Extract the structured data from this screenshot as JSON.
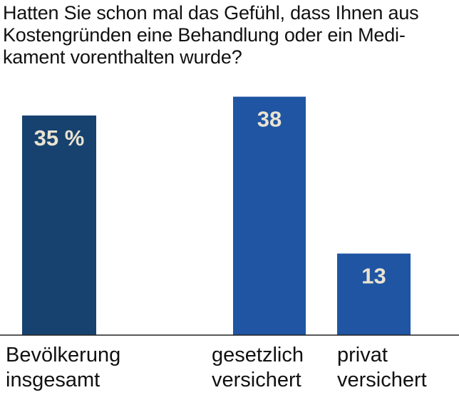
{
  "chart_data": {
    "type": "bar",
    "title_lines": [
      "Hatten Sie schon mal das Gefühl, dass Ihnen aus",
      "Kostengründen eine Behandlung oder ein Medi-",
      "kament vorenthalten wurde?"
    ],
    "categories": [
      [
        "Bevölkerung",
        "insgesamt"
      ],
      [
        "gesetzlich",
        "versichert"
      ],
      [
        "privat",
        "versichert"
      ]
    ],
    "values": [
      35,
      38,
      13
    ],
    "value_labels": [
      "35 %",
      "38",
      "13"
    ],
    "ylim": [
      0,
      40
    ],
    "colors": [
      "#17426f",
      "#1f55a3",
      "#1f55a3"
    ],
    "value_label_color": "#eae3d1",
    "grid": false,
    "legend": "none"
  }
}
